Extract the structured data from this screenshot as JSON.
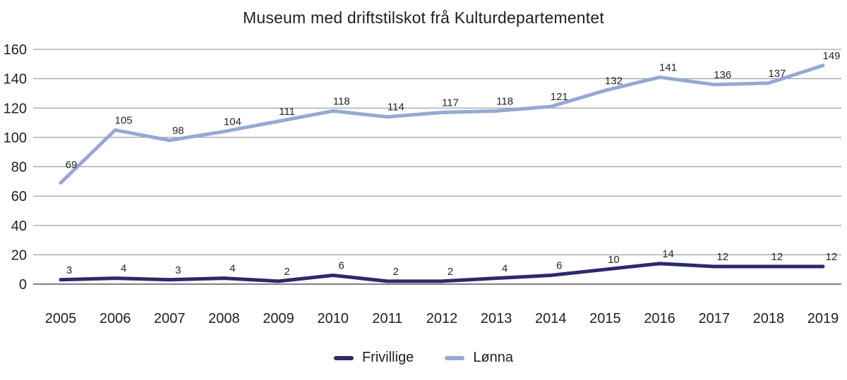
{
  "chart_data": {
    "type": "line",
    "title": "Museum med driftstilskot frå Kulturdepartementet",
    "categories": [
      "2005",
      "2006",
      "2007",
      "2008",
      "2009",
      "2010",
      "2011",
      "2012",
      "2013",
      "2014",
      "2015",
      "2016",
      "2017",
      "2018",
      "2019"
    ],
    "series": [
      {
        "name": "Frivillige",
        "color": "#2B2A6C",
        "values": [
          3,
          4,
          3,
          4,
          2,
          6,
          2,
          2,
          4,
          6,
          10,
          14,
          12,
          12,
          12
        ]
      },
      {
        "name": "Lønna",
        "color": "#95A9D6",
        "values": [
          69,
          105,
          98,
          104,
          111,
          118,
          114,
          117,
          118,
          121,
          132,
          141,
          136,
          137,
          149
        ]
      }
    ],
    "ylim": [
      0,
      160
    ],
    "yticks": [
      0,
      20,
      40,
      60,
      80,
      100,
      120,
      140,
      160
    ],
    "grid": "horizontal",
    "gridline_color": "#8C8C8C",
    "axis_line_color": "#808080",
    "tick_label_color": "#1F1F1F",
    "data_label_color": "#262626",
    "legend_position": "bottom",
    "data_labels": true
  }
}
